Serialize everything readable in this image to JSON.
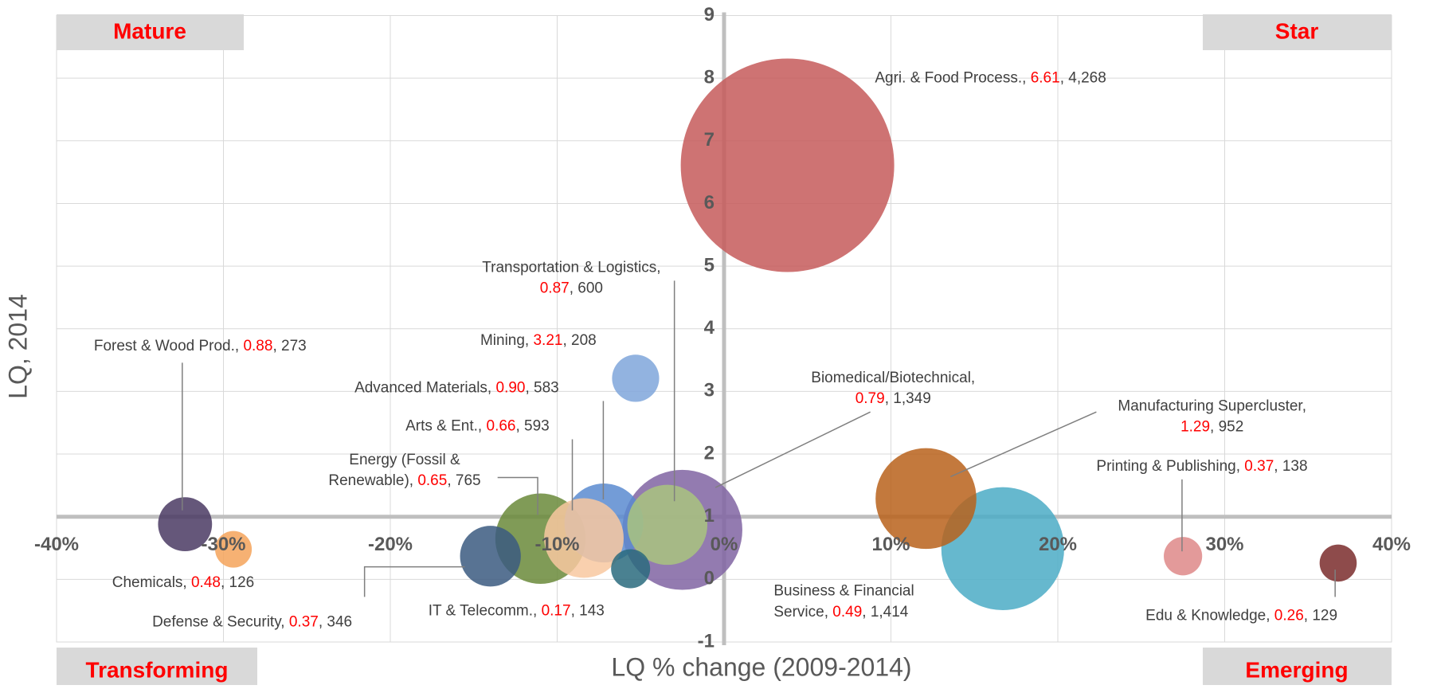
{
  "chart_data": {
    "type": "bubble",
    "x_label": "LQ % change (2009-2014)",
    "y_label": "LQ, 2014",
    "quadrants": {
      "top_left": "Mature",
      "top_right": "Star",
      "bottom_left": "Transforming",
      "bottom_right": "Emerging"
    },
    "xlim": [
      -40,
      40
    ],
    "xticks": [
      {
        "value": -40,
        "label": "-40%"
      },
      {
        "value": -30,
        "label": "-30%"
      },
      {
        "value": -20,
        "label": "-20%"
      },
      {
        "value": -10,
        "label": "-10%"
      },
      {
        "value": 0,
        "label": "0%"
      },
      {
        "value": 10,
        "label": "10%"
      },
      {
        "value": 20,
        "label": "20%"
      },
      {
        "value": 30,
        "label": "30%"
      },
      {
        "value": 40,
        "label": "40%"
      }
    ],
    "ylim": [
      -1,
      9
    ],
    "yticks": [
      -1,
      0,
      1,
      2,
      3,
      4,
      5,
      6,
      7,
      8,
      9
    ],
    "grid": true,
    "axis_cross": {
      "x": 0,
      "y": 1
    },
    "separator": ",",
    "points": [
      {
        "name": [
          "Agri. & Food Process.,"
        ],
        "x": 3.8,
        "y": 6.61,
        "y_label": "6.61",
        "size": 4268,
        "size_label": "4,268",
        "color": "#c55a5a"
      },
      {
        "name": [
          "Biomedical/Biotechnical,"
        ],
        "x": -2.5,
        "y": 0.79,
        "y_label": "0.79",
        "size": 1349,
        "size_label": "1,349",
        "color": "#8064a2"
      },
      {
        "name": [
          "Business & Financial",
          "Service,"
        ],
        "x": 16.7,
        "y": 0.49,
        "y_label": "0.49",
        "size": 1414,
        "size_label": "1,414",
        "color": "#4bacc6"
      },
      {
        "name": [
          "Manufacturing Supercluster,"
        ],
        "x": 12.1,
        "y": 1.29,
        "y_label": "1.29",
        "size": 952,
        "size_label": "952",
        "color": "#b8621b"
      },
      {
        "name": [
          "Energy (Fossil &",
          "Renewable),"
        ],
        "x": -11.0,
        "y": 0.65,
        "y_label": "0.65",
        "size": 765,
        "size_label": "765",
        "color": "#6a8a3a"
      },
      {
        "name": [
          "Advanced Materials,"
        ],
        "x": -7.2,
        "y": 0.9,
        "y_label": "0.90",
        "size": 583,
        "size_label": "583",
        "color": "#5b8bd0"
      },
      {
        "name": [
          "Arts & Ent.,"
        ],
        "x": -8.4,
        "y": 0.66,
        "y_label": "0.66",
        "size": 593,
        "size_label": "593",
        "color": "#f8c8a0"
      },
      {
        "name": [
          "Defense & Security,"
        ],
        "x": -14.0,
        "y": 0.37,
        "y_label": "0.37",
        "size": 346,
        "size_label": "346",
        "color": "#3b5a80"
      },
      {
        "name": [
          "Transportation & Logistics,"
        ],
        "x": -3.4,
        "y": 0.87,
        "y_label": "0.87",
        "size": 600,
        "size_label": "600",
        "color": "#a9c47f"
      },
      {
        "name": [
          "Forest & Wood Prod.,"
        ],
        "x": -32.3,
        "y": 0.88,
        "y_label": "0.88",
        "size": 273,
        "size_label": "273",
        "color": "#4a3a63"
      },
      {
        "name": [
          "Mining,"
        ],
        "x": -5.3,
        "y": 3.21,
        "y_label": "3.21",
        "size": 208,
        "size_label": "208",
        "color": "#7fa6da"
      },
      {
        "name": [
          "IT & Telecomm.,"
        ],
        "x": -5.6,
        "y": 0.17,
        "y_label": "0.17",
        "size": 143,
        "size_label": "143",
        "color": "#2a6b7e"
      },
      {
        "name": [
          "Chemicals,"
        ],
        "x": -29.4,
        "y": 0.48,
        "y_label": "0.48",
        "size": 126,
        "size_label": "126",
        "color": "#f5a35a"
      },
      {
        "name": [
          "Printing & Publishing,"
        ],
        "x": 27.5,
        "y": 0.37,
        "y_label": "0.37",
        "size": 138,
        "size_label": "138",
        "color": "#de8888"
      },
      {
        "name": [
          "Edu & Knowledge,"
        ],
        "x": 36.8,
        "y": 0.26,
        "y_label": "0.26",
        "size": 129,
        "size_label": "129",
        "color": "#7a2c2c"
      }
    ]
  }
}
